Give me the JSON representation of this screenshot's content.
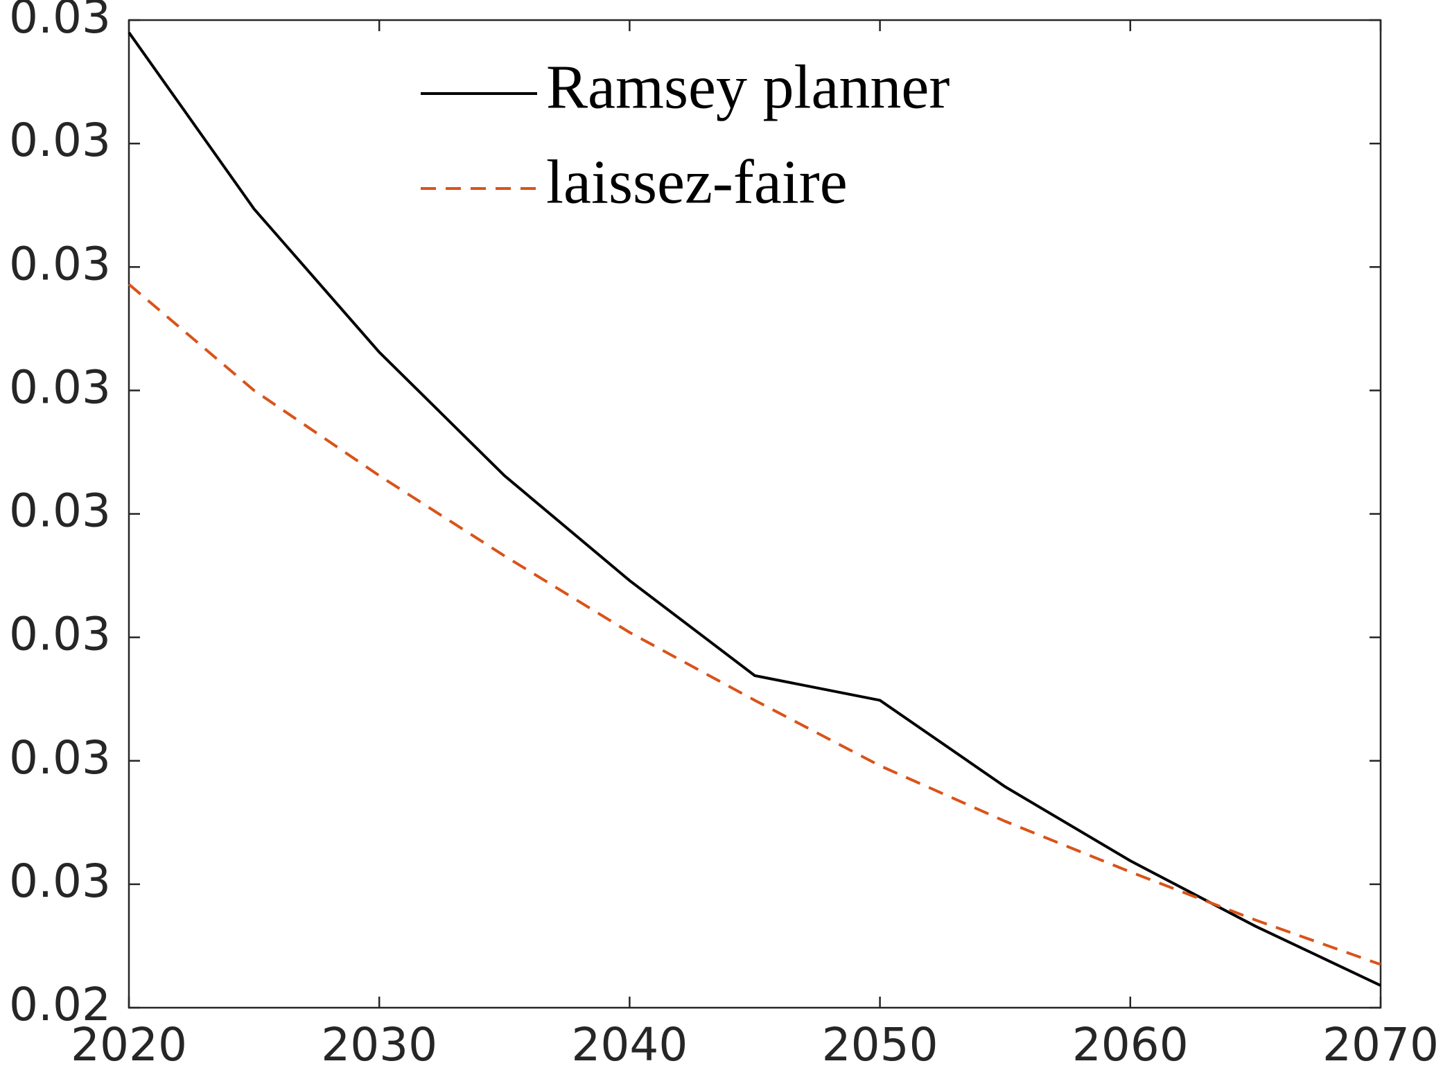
{
  "chart_data": {
    "type": "line",
    "x": [
      2020,
      2025,
      2030,
      2035,
      2040,
      2045,
      2050,
      2055,
      2060,
      2065,
      2070
    ],
    "series": [
      {
        "name": "Ramsey planner",
        "color": "#000000",
        "dash": "solid",
        "values": [
          0.0319,
          0.03047,
          0.02931,
          0.02831,
          0.02746,
          0.02669,
          0.02649,
          0.02579,
          0.02519,
          0.02466,
          0.02418
        ]
      },
      {
        "name": "laissez-faire",
        "color": "#d95319",
        "dash": "dashed",
        "values": [
          0.02986,
          0.029,
          0.02831,
          0.02766,
          0.02704,
          0.02649,
          0.02596,
          0.02551,
          0.0251,
          0.02471,
          0.02435
        ]
      }
    ],
    "xlim": [
      2020,
      2070
    ],
    "xticks": [
      2020,
      2030,
      2040,
      2050,
      2060,
      2070
    ],
    "ylim": [
      0.024,
      0.032
    ],
    "yticks": [
      {
        "value": 0.024,
        "label": "0.02"
      },
      {
        "value": 0.025,
        "label": "0.03"
      },
      {
        "value": 0.026,
        "label": "0.03"
      },
      {
        "value": 0.027,
        "label": "0.03"
      },
      {
        "value": 0.028,
        "label": "0.03"
      },
      {
        "value": 0.029,
        "label": "0.03"
      },
      {
        "value": 0.03,
        "label": "0.03"
      },
      {
        "value": 0.031,
        "label": "0.03"
      },
      {
        "value": 0.032,
        "label": "0.03"
      }
    ],
    "grid": false,
    "legend": "top"
  }
}
